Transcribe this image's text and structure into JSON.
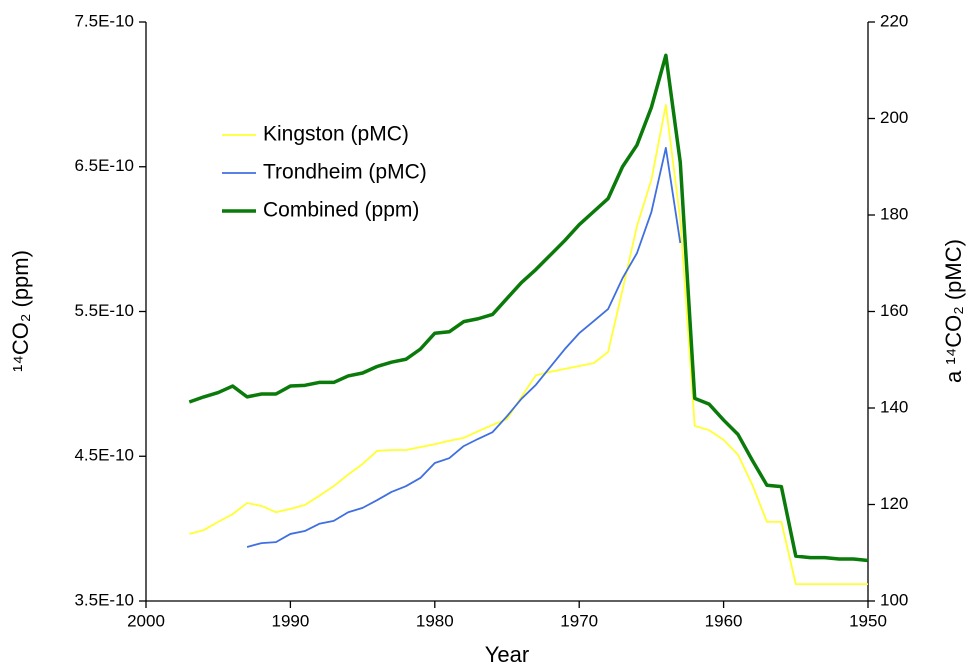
{
  "chart_data": {
    "type": "line",
    "xlabel": "Year",
    "ylabel": "¹⁴CO₂ (ppm)",
    "y2label": "a ¹⁴CO₂ (pMC)",
    "ylabel_color": "#008000",
    "x": [
      1997,
      1996,
      1995,
      1994,
      1993,
      1992,
      1991,
      1990,
      1989,
      1988,
      1987,
      1986,
      1985,
      1984,
      1983,
      1982,
      1981,
      1980,
      1979,
      1978,
      1977,
      1976,
      1975,
      1974,
      1973,
      1972,
      1971,
      1970,
      1969,
      1968,
      1967,
      1966,
      1965,
      1964,
      1963,
      1962,
      1961,
      1960,
      1959,
      1958,
      1957,
      1956,
      1955,
      1954,
      1953,
      1952,
      1951,
      1950
    ],
    "xlim": [
      2000,
      1950
    ],
    "xticks": [
      2000,
      1990,
      1980,
      1970,
      1960,
      1950
    ],
    "ylim": [
      3.5e-10,
      7.5e-10
    ],
    "yticks": [
      {
        "value": 3.5e-10,
        "label": "3.5E-10"
      },
      {
        "value": 4.5e-10,
        "label": "4.5E-10"
      },
      {
        "value": 5.5e-10,
        "label": "5.5E-10"
      },
      {
        "value": 6.5e-10,
        "label": "6.5E-10"
      },
      {
        "value": 7.5e-10,
        "label": "7.5E-10"
      }
    ],
    "y2lim": [
      100,
      220
    ],
    "y2ticks": [
      100,
      120,
      140,
      160,
      180,
      200,
      220
    ],
    "grid": false,
    "series": [
      {
        "name": "Kingston (pMC)",
        "color": "#ffff33",
        "axis": "y2",
        "values": [
          113.9,
          114.7,
          116.4,
          118.0,
          120.3,
          119.7,
          118.4,
          119.1,
          119.9,
          121.8,
          123.8,
          126.2,
          128.4,
          131.1,
          131.3,
          131.3,
          131.9,
          132.5,
          133.2,
          133.8,
          135.2,
          136.5,
          137.7,
          142.3,
          146.8,
          147.5,
          148.1,
          148.7,
          149.3,
          151.6,
          164.5,
          177.7,
          187.3,
          202.8,
          179.0,
          136.3,
          135.4,
          133.4,
          130.3,
          124.0,
          116.4,
          116.4,
          103.5,
          103.5,
          103.5,
          103.5,
          103.5,
          103.5
        ]
      },
      {
        "name": "Trondheim (pMC)",
        "color": "#3f6fe0",
        "axis": "y2",
        "values": [
          null,
          null,
          null,
          null,
          111.2,
          112.0,
          112.2,
          113.9,
          114.5,
          116.0,
          116.6,
          118.4,
          119.3,
          120.9,
          122.6,
          123.8,
          125.5,
          128.6,
          129.6,
          132.1,
          133.6,
          135.0,
          138.3,
          141.9,
          144.8,
          148.5,
          152.2,
          155.5,
          158.0,
          160.5,
          166.9,
          172.1,
          180.6,
          193.9,
          174.2,
          null,
          null,
          null,
          null,
          null,
          null,
          null,
          null,
          null,
          null,
          null,
          null,
          null
        ]
      },
      {
        "name": "Combined (ppm)",
        "color": "#0a7a0a",
        "axis": "y",
        "width": 3.5,
        "values": [
          4.875e-10,
          4.91e-10,
          4.94e-10,
          4.985e-10,
          4.91e-10,
          4.93e-10,
          4.93e-10,
          4.985e-10,
          4.99e-10,
          5.01e-10,
          5.01e-10,
          5.055e-10,
          5.075e-10,
          5.12e-10,
          5.15e-10,
          5.17e-10,
          5.24e-10,
          5.35e-10,
          5.36e-10,
          5.43e-10,
          5.45e-10,
          5.48e-10,
          5.59e-10,
          5.7e-10,
          5.79e-10,
          5.89e-10,
          5.99e-10,
          6.1e-10,
          6.19e-10,
          6.28e-10,
          6.5e-10,
          6.65e-10,
          6.91e-10,
          7.27e-10,
          6.53e-10,
          4.9e-10,
          4.86e-10,
          4.75e-10,
          4.65e-10,
          4.47e-10,
          4.3e-10,
          4.29e-10,
          3.81e-10,
          3.8e-10,
          3.8e-10,
          3.79e-10,
          3.79e-10,
          3.78e-10
        ]
      }
    ]
  }
}
